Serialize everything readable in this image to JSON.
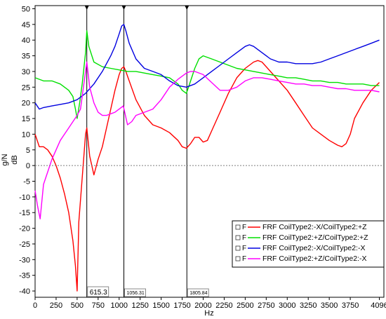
{
  "chart_data": {
    "type": "line",
    "title": "",
    "xlabel": "Hz",
    "ylabel": "g/N",
    "ylabel2": "dB",
    "xlim": [
      0,
      4150
    ],
    "ylim": [
      -42,
      51
    ],
    "x_ticks": [
      0,
      250,
      500,
      750,
      1000,
      1250,
      1500,
      1750,
      2000,
      2250,
      2500,
      2750,
      3000,
      3250,
      3500,
      3750,
      4096
    ],
    "y_ticks": [
      50,
      45,
      40,
      35,
      30,
      25,
      20,
      15,
      10,
      5,
      0,
      -5,
      -10,
      -15,
      -20,
      -25,
      -30,
      -35,
      -40
    ],
    "grid": false,
    "legend_position": "bottom-right",
    "cursors": [
      {
        "x": 615.3,
        "label": "615.3",
        "active": true
      },
      {
        "x": 1056.31,
        "label": "1056.31",
        "active": false
      },
      {
        "x": 1805.84,
        "label": "1805.84",
        "active": false
      }
    ],
    "series": [
      {
        "name": "FRF CoilType2:-X/CoilType2:+Z",
        "prefix": "F",
        "color": "#ff0000",
        "x": [
          0,
          50,
          100,
          150,
          200,
          250,
          300,
          350,
          400,
          450,
          480,
          500,
          520,
          560,
          600,
          615,
          650,
          700,
          750,
          800,
          850,
          900,
          950,
          1000,
          1030,
          1056,
          1080,
          1120,
          1200,
          1300,
          1400,
          1500,
          1600,
          1700,
          1750,
          1800,
          1850,
          1900,
          1950,
          2000,
          2050,
          2100,
          2200,
          2300,
          2400,
          2500,
          2600,
          2650,
          2700,
          2800,
          2900,
          3000,
          3100,
          3200,
          3300,
          3400,
          3500,
          3600,
          3650,
          3700,
          3750,
          3800,
          3900,
          4000,
          4096
        ],
        "y": [
          10,
          6,
          6,
          5,
          3,
          0,
          -4,
          -9,
          -15,
          -24,
          -32,
          -40,
          -18,
          -4,
          10,
          12,
          3,
          -3,
          2,
          6,
          12,
          18,
          24,
          29,
          31,
          31.5,
          30,
          27,
          21,
          16,
          13,
          12,
          10.5,
          8,
          6,
          5.5,
          7,
          9,
          9,
          7.5,
          8,
          11,
          17,
          23,
          28,
          31,
          33,
          33.5,
          33,
          30,
          27,
          24,
          20,
          16,
          12,
          10,
          8,
          6.5,
          6,
          7,
          10,
          15,
          20,
          24,
          26.5
        ]
      },
      {
        "name": "FRF CoilType2:+Z/CoilType2:+Z",
        "prefix": "F",
        "color": "#00e000",
        "x": [
          0,
          100,
          200,
          300,
          400,
          450,
          480,
          500,
          530,
          560,
          600,
          615,
          640,
          700,
          800,
          900,
          1000,
          1100,
          1200,
          1300,
          1400,
          1500,
          1600,
          1700,
          1750,
          1800,
          1850,
          1900,
          1950,
          2000,
          2100,
          2200,
          2300,
          2400,
          2500,
          2600,
          2700,
          2800,
          2900,
          3000,
          3100,
          3200,
          3300,
          3400,
          3500,
          3600,
          3700,
          3800,
          3900,
          4000,
          4096
        ],
        "y": [
          28,
          27,
          27,
          26,
          24,
          22,
          18,
          15,
          20,
          26,
          36,
          43,
          38,
          33,
          31.5,
          31,
          30.5,
          30,
          30,
          29.5,
          29,
          28.5,
          28,
          26,
          24,
          23,
          27,
          31,
          34,
          35,
          34,
          33,
          32,
          31,
          30.5,
          30,
          29.5,
          29,
          28.5,
          28,
          28,
          27.5,
          27,
          27,
          26.5,
          26.5,
          26,
          26,
          26,
          25.5,
          25.5
        ]
      },
      {
        "name": "FRF CoilType2:-X/CoilType2:-X",
        "prefix": "F",
        "color": "#0000e0",
        "x": [
          0,
          50,
          100,
          200,
          300,
          400,
          500,
          600,
          700,
          800,
          900,
          950,
          1000,
          1030,
          1056,
          1080,
          1120,
          1200,
          1300,
          1400,
          1500,
          1600,
          1700,
          1800,
          1900,
          2000,
          2100,
          2200,
          2300,
          2400,
          2500,
          2550,
          2600,
          2700,
          2800,
          2900,
          3000,
          3100,
          3200,
          3300,
          3400,
          3500,
          3600,
          3700,
          3800,
          3900,
          4000,
          4096
        ],
        "y": [
          20,
          18,
          18.5,
          19,
          19.5,
          20,
          21,
          23,
          26,
          30,
          35,
          38,
          42,
          44.5,
          45,
          43,
          39,
          34,
          31,
          30,
          29,
          27,
          25.5,
          25,
          26,
          28,
          30,
          32,
          34,
          36,
          38,
          38.5,
          38,
          36,
          34,
          33,
          33,
          32.5,
          32.5,
          32.5,
          33,
          34,
          35,
          36,
          37,
          38,
          39,
          40
        ]
      },
      {
        "name": "FRF CoilType2:+Z/CoilType2:-X",
        "prefix": "F",
        "color": "#ff00ff",
        "x": [
          0,
          30,
          60,
          100,
          150,
          200,
          250,
          300,
          350,
          400,
          450,
          500,
          540,
          580,
          615,
          650,
          700,
          750,
          800,
          850,
          900,
          950,
          1000,
          1050,
          1100,
          1150,
          1200,
          1300,
          1400,
          1500,
          1600,
          1700,
          1800,
          1850,
          1900,
          2000,
          2100,
          2200,
          2300,
          2400,
          2500,
          2600,
          2700,
          2800,
          2900,
          3000,
          3100,
          3200,
          3300,
          3400,
          3500,
          3600,
          3700,
          3800,
          3900,
          4000,
          4096
        ],
        "y": [
          -8,
          -13,
          -17,
          -6,
          -2,
          2,
          5,
          8,
          10,
          12,
          14,
          16,
          18,
          26,
          33,
          25,
          20,
          17,
          16,
          16,
          16.5,
          17,
          18,
          19,
          13,
          14,
          16,
          17,
          18,
          21,
          25,
          27.5,
          29.5,
          30,
          30,
          29,
          26.5,
          24,
          24,
          25,
          27,
          28,
          28,
          27.5,
          27,
          26.5,
          26,
          26,
          25.5,
          25.5,
          25,
          24.5,
          24.5,
          24,
          24,
          24,
          23.5
        ]
      }
    ]
  }
}
